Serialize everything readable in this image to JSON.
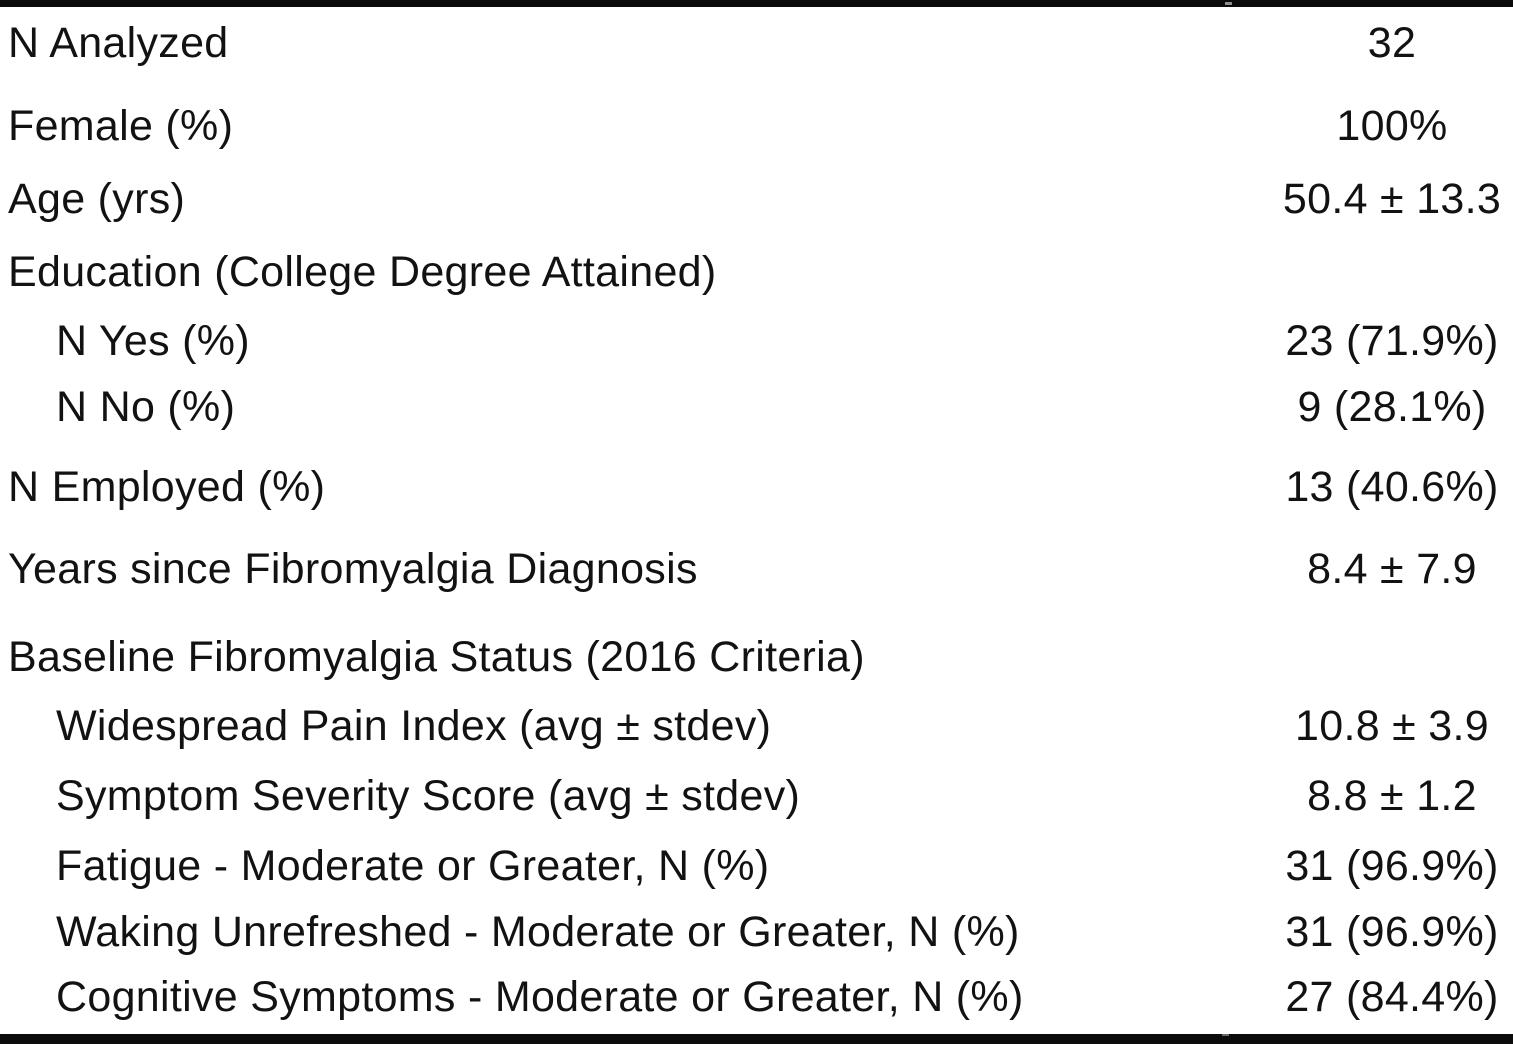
{
  "table": {
    "description": "Baseline participant characteristics table",
    "colors": {
      "background": "#ffffff",
      "text": "#121212",
      "rule": "#0b0b0b",
      "notch": "#8d8d8d"
    },
    "rows": [
      {
        "label": "N Analyzed",
        "value": "32",
        "indent": false
      },
      {
        "label": "Female (%)",
        "value": "100%",
        "indent": false
      },
      {
        "label": "Age (yrs)",
        "value": "50.4 ± 13.3",
        "indent": false
      },
      {
        "label": "Education (College Degree Attained)",
        "value": "",
        "indent": false
      },
      {
        "label": "N Yes (%)",
        "value": "23 (71.9%)",
        "indent": true
      },
      {
        "label": "N No (%)",
        "value": "9 (28.1%)",
        "indent": true
      },
      {
        "label": "N Employed (%)",
        "value": "13 (40.6%)",
        "indent": false
      },
      {
        "label": "Years since Fibromyalgia Diagnosis",
        "value": "8.4 ± 7.9",
        "indent": false
      },
      {
        "label": "Baseline Fibromyalgia Status (2016 Criteria)",
        "value": "",
        "indent": false
      },
      {
        "label": "Widespread Pain Index (avg ± stdev)",
        "value": "10.8 ± 3.9",
        "indent": true
      },
      {
        "label": "Symptom Severity Score (avg ± stdev)",
        "value": "8.8 ± 1.2",
        "indent": true
      },
      {
        "label": "Fatigue - Moderate or Greater, N (%)",
        "value": "31 (96.9%)",
        "indent": true
      },
      {
        "label": "Waking Unrefreshed - Moderate or Greater, N (%)",
        "value": "31 (96.9%)",
        "indent": true
      },
      {
        "label": "Cognitive Symptoms - Moderate or Greater, N (%)",
        "value": "27 (84.4%)",
        "indent": true
      }
    ]
  }
}
